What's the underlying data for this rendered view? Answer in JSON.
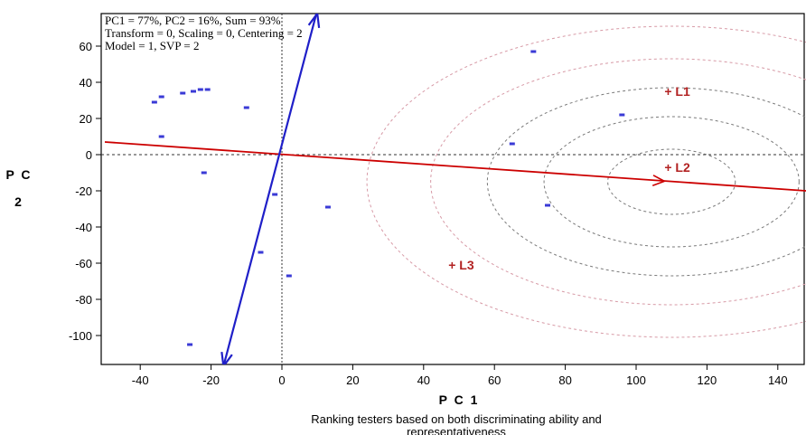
{
  "chart_data": {
    "type": "scatter",
    "title": "",
    "caption_line1": "Ranking testers based on both discriminating ability and",
    "caption_line2": "representativeness",
    "xlabel": "P C 1",
    "ylabel_line1": "P C",
    "ylabel_line2": "2",
    "xlim": [
      -50,
      148
    ],
    "ylim": [
      -117,
      78
    ],
    "x_ticks": [
      -40,
      -20,
      0,
      20,
      40,
      60,
      80,
      100,
      120,
      140
    ],
    "y_ticks": [
      -100,
      -80,
      -60,
      -40,
      -20,
      0,
      20,
      40,
      60
    ],
    "info_lines": [
      "PC1 = 77%, PC2 = 16%, Sum = 93%",
      "Transform = 0, Scaling = 0, Centering = 2",
      "Model = 1, SVP = 2"
    ],
    "genotypes": {
      "color": "#3a3ad6",
      "x": [
        -36,
        -34,
        -34,
        -28,
        -25,
        -23,
        -21,
        -10,
        -22,
        -2,
        -6,
        2,
        13,
        65,
        71,
        75,
        96,
        -26
      ],
      "y": [
        29,
        32,
        10,
        34,
        35,
        36,
        36,
        26,
        -10,
        -22,
        -54,
        -67,
        -29,
        6,
        57,
        -28,
        22,
        -105
      ]
    },
    "environments": [
      {
        "label": "+ L1",
        "x": 108,
        "y": 35
      },
      {
        "label": "+ L2",
        "x": 108,
        "y": -7
      },
      {
        "label": "+ L3",
        "x": 47,
        "y": -61
      }
    ],
    "aea_line": {
      "color": "#cc0000",
      "x1": -50,
      "y1": 7,
      "x2": 148,
      "y2": -20,
      "arrow_at": [
        108,
        -14.7
      ]
    },
    "aec_ordinate": {
      "color": "#1f1fc8",
      "x1": 10,
      "y1": 80,
      "x2": -16.5,
      "y2": -117
    },
    "circles": {
      "center": [
        110,
        -15
      ],
      "gray_radii": [
        18,
        36,
        52
      ],
      "pink_radii": [
        68,
        86
      ]
    }
  }
}
